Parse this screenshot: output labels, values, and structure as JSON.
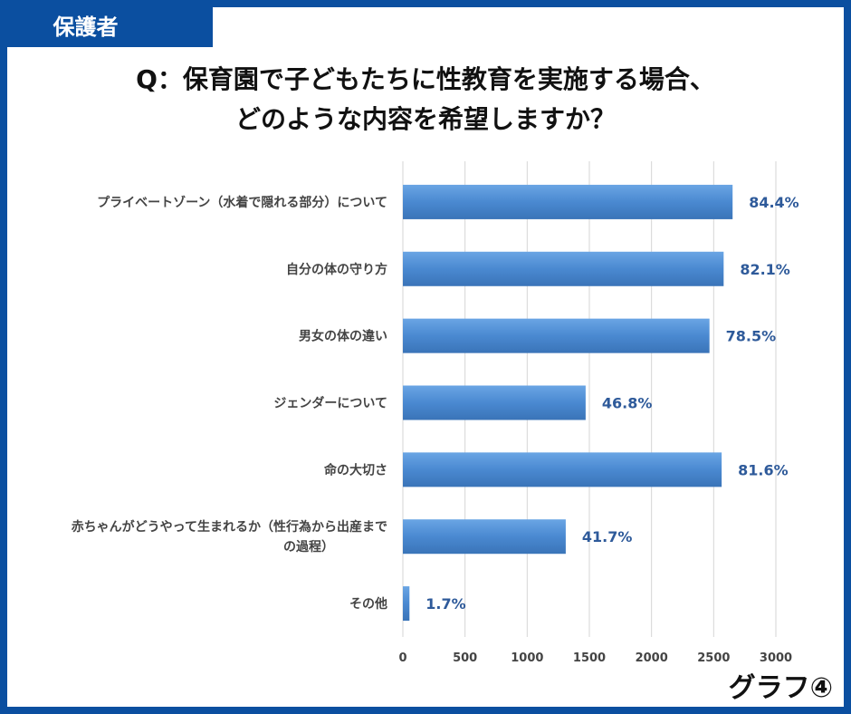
{
  "badge": "保護者",
  "title_lines": [
    "Q：保育園で子どもたちに性教育を実施する場合、",
    "どのような内容を希望しますか？"
  ],
  "graph_label": "グラフ④",
  "colors": {
    "frame": "#0b4fa0",
    "bar": "#4a89d1",
    "value_text": "#2e5a9a"
  },
  "chart_data": {
    "type": "bar",
    "orientation": "horizontal",
    "categories": [
      [
        "プライベートゾーン（水着で隠れる部分）について"
      ],
      [
        "自分の体の守り方"
      ],
      [
        "男女の体の違い"
      ],
      [
        "ジェンダーについて"
      ],
      [
        "命の大切さ"
      ],
      [
        "赤ちゃんがどうやって生まれるか（性行為から出産まで",
        "の過程）"
      ],
      [
        "その他"
      ]
    ],
    "values": [
      2652,
      2580,
      2466,
      1470,
      2564,
      1310,
      53
    ],
    "value_labels": [
      "84.4%",
      "82.1%",
      "78.5%",
      "46.8%",
      "81.6%",
      "41.7%",
      "1.7%"
    ],
    "xlim": [
      0,
      3000
    ],
    "xticks": [
      "0",
      "500",
      "1000",
      "1500",
      "2000",
      "2500",
      "3000"
    ],
    "grid": true
  }
}
